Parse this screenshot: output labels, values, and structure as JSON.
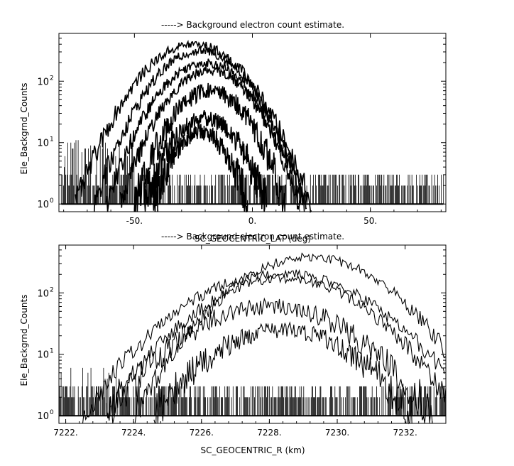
{
  "chart_data": [
    {
      "type": "line",
      "title": "-----> Background electron count estimate.",
      "xlabel": "SC_GEOCENTRIC_LAT (deg)",
      "ylabel": "Ele_Backgrnd_Counts",
      "xlim": [
        -82,
        82
      ],
      "ylim": [
        0.75,
        600
      ],
      "yscale": "log",
      "grid": false,
      "x_ticks": [
        -50,
        0,
        50
      ],
      "x_tick_labels": [
        "-50.",
        "0.",
        "50."
      ],
      "y_ticks": [
        1,
        10,
        100
      ],
      "y_tick_base": "10",
      "y_tick_exponents": [
        "0",
        "1",
        "2"
      ],
      "noise_floor": {
        "x_range": [
          -81,
          81
        ],
        "values": [
          1,
          2,
          3
        ],
        "peak_region": [
          -80,
          -50
        ],
        "peak_max": 11
      },
      "series": [
        {
          "center": -25,
          "halfwidth": 50,
          "peak": 400
        },
        {
          "center": -22,
          "halfwidth": 45,
          "peak": 310
        },
        {
          "center": -20,
          "halfwidth": 42,
          "peak": 200
        },
        {
          "center": -18,
          "halfwidth": 38,
          "peak": 150
        },
        {
          "center": -18,
          "halfwidth": 32,
          "peak": 70
        },
        {
          "center": -20,
          "halfwidth": 26,
          "peak": 25
        },
        {
          "center": -22,
          "halfwidth": 20,
          "peak": 15
        }
      ]
    },
    {
      "type": "line",
      "title": "-----> Background electron count estimate.",
      "xlabel": "SC_GEOCENTRIC_R (km)",
      "ylabel": "Ele_Backgrnd_Counts",
      "xlim": [
        7221.8,
        7233.2
      ],
      "ylim": [
        0.75,
        600
      ],
      "yscale": "log",
      "grid": false,
      "x_ticks": [
        7222,
        7224,
        7226,
        7228,
        7230,
        7232
      ],
      "x_tick_labels": [
        "7222.",
        "7224.",
        "7226.",
        "7228.",
        "7230.",
        "7232."
      ],
      "y_ticks": [
        1,
        10,
        100
      ],
      "y_tick_base": "10",
      "y_tick_exponents": [
        "0",
        "1",
        "2"
      ],
      "noise_floor": {
        "x_range": [
          7221.8,
          7233.2
        ],
        "values": [
          1,
          2,
          3
        ],
        "peak_region": [
          7221.8,
          7223.5
        ],
        "peak_max": 6
      },
      "series": [
        {
          "center": 7229.2,
          "halfwidth": 5.2,
          "peak": 380
        },
        {
          "center": 7228.3,
          "halfwidth": 5.8,
          "peak": 210
        },
        {
          "center": 7228.4,
          "halfwidth": 5.2,
          "peak": 170
        },
        {
          "center": 7228.0,
          "halfwidth": 4.8,
          "peak": 60
        },
        {
          "center": 7228.4,
          "halfwidth": 3.8,
          "peak": 25
        }
      ]
    }
  ]
}
